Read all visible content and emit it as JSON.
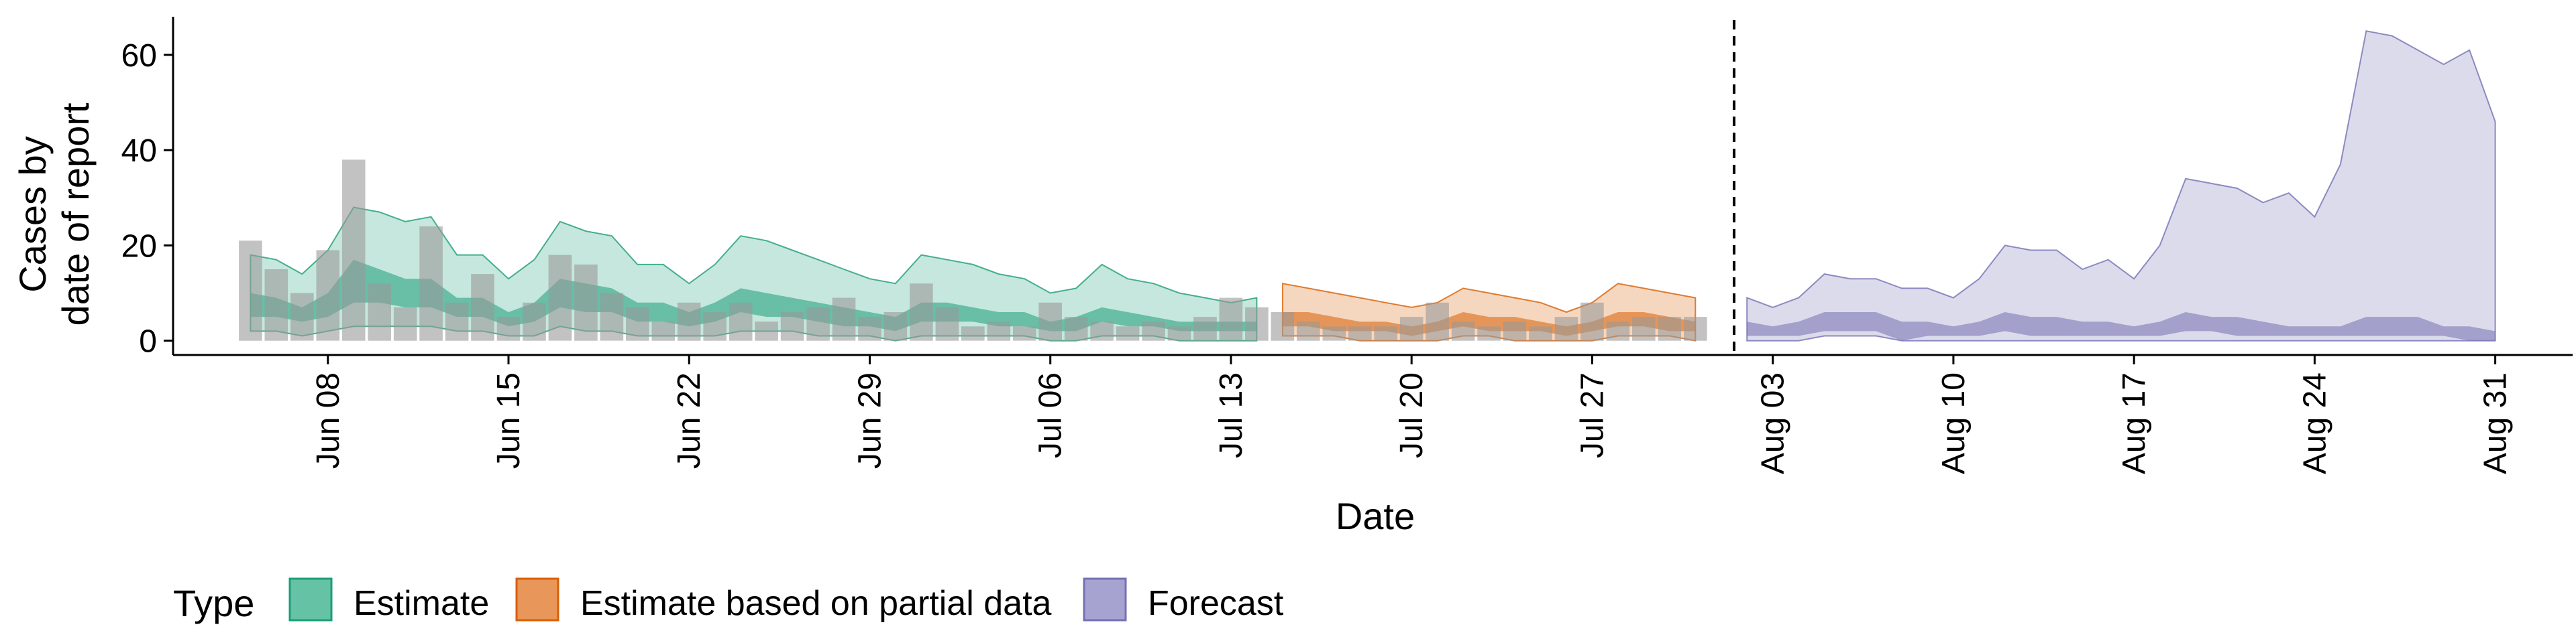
{
  "chart_data": {
    "type": "area",
    "title": "",
    "xlabel": "Date",
    "ylabel": [
      "Cases by",
      "date of report"
    ],
    "ylim": [
      -3,
      68
    ],
    "yticks": [
      0,
      20,
      40,
      60
    ],
    "xlim": [
      "2020-06-02",
      "2020-09-03"
    ],
    "xticks": [
      "2020-06-08",
      "2020-06-15",
      "2020-06-22",
      "2020-06-29",
      "2020-07-06",
      "2020-07-13",
      "2020-07-20",
      "2020-07-27",
      "2020-08-03",
      "2020-08-10",
      "2020-08-17",
      "2020-08-24",
      "2020-08-31"
    ],
    "xtick_labels": [
      "Jun 08",
      "Jun 15",
      "Jun 22",
      "Jun 29",
      "Jul 06",
      "Jul 13",
      "Jul 20",
      "Jul 27",
      "Aug 03",
      "Aug 10",
      "Aug 17",
      "Aug 24",
      "Aug 31"
    ],
    "forecast_date": "2020-08-01",
    "grid": false,
    "legend": {
      "title": "Type",
      "position": "bottom-left",
      "entries": [
        {
          "label": "Estimate",
          "fill": "#66c2a5",
          "stroke": "#1b9e77"
        },
        {
          "label": "Estimate based on partial data",
          "fill": "#e8965a",
          "stroke": "#d95f02"
        },
        {
          "label": "Forecast",
          "fill": "#a6a3d1",
          "stroke": "#7570b3"
        }
      ]
    },
    "colors": {
      "estimate_outer": "#1b9e77",
      "estimate_inner": "#1b9e77",
      "partial_outer": "#d95f02",
      "partial_inner": "#d95f02",
      "forecast_outer": "#7570b3",
      "forecast_inner": "#7570b3",
      "bars": "#999999"
    },
    "reported_cases": {
      "x": [
        "2020-06-05",
        "2020-06-06",
        "2020-06-07",
        "2020-06-08",
        "2020-06-09",
        "2020-06-10",
        "2020-06-11",
        "2020-06-12",
        "2020-06-13",
        "2020-06-14",
        "2020-06-15",
        "2020-06-16",
        "2020-06-17",
        "2020-06-18",
        "2020-06-19",
        "2020-06-20",
        "2020-06-21",
        "2020-06-22",
        "2020-06-23",
        "2020-06-24",
        "2020-06-25",
        "2020-06-26",
        "2020-06-27",
        "2020-06-28",
        "2020-06-29",
        "2020-06-30",
        "2020-07-01",
        "2020-07-02",
        "2020-07-03",
        "2020-07-04",
        "2020-07-05",
        "2020-07-06",
        "2020-07-07",
        "2020-07-08",
        "2020-07-09",
        "2020-07-10",
        "2020-07-11",
        "2020-07-12",
        "2020-07-13",
        "2020-07-14",
        "2020-07-15",
        "2020-07-16",
        "2020-07-17",
        "2020-07-18",
        "2020-07-19",
        "2020-07-20",
        "2020-07-21",
        "2020-07-22",
        "2020-07-23",
        "2020-07-24",
        "2020-07-25",
        "2020-07-26",
        "2020-07-27",
        "2020-07-28",
        "2020-07-29",
        "2020-07-30",
        "2020-07-31"
      ],
      "values": [
        21,
        15,
        10,
        19,
        38,
        12,
        7,
        24,
        8,
        14,
        5,
        8,
        18,
        16,
        10,
        7,
        4,
        8,
        6,
        8,
        4,
        6,
        7,
        9,
        5,
        6,
        12,
        7,
        3,
        4,
        3,
        8,
        5,
        4,
        3,
        4,
        3,
        5,
        9,
        7,
        6,
        4,
        3,
        3,
        3,
        5,
        8,
        4,
        3,
        4,
        3,
        5,
        8,
        4,
        5,
        5,
        5
      ]
    },
    "estimate": {
      "x": [
        "2020-06-05",
        "2020-06-06",
        "2020-06-07",
        "2020-06-08",
        "2020-06-09",
        "2020-06-10",
        "2020-06-11",
        "2020-06-12",
        "2020-06-13",
        "2020-06-14",
        "2020-06-15",
        "2020-06-16",
        "2020-06-17",
        "2020-06-18",
        "2020-06-19",
        "2020-06-20",
        "2020-06-21",
        "2020-06-22",
        "2020-06-23",
        "2020-06-24",
        "2020-06-25",
        "2020-06-26",
        "2020-06-27",
        "2020-06-28",
        "2020-06-29",
        "2020-06-30",
        "2020-07-01",
        "2020-07-02",
        "2020-07-03",
        "2020-07-04",
        "2020-07-05",
        "2020-07-06",
        "2020-07-07",
        "2020-07-08",
        "2020-07-09",
        "2020-07-10",
        "2020-07-11",
        "2020-07-12",
        "2020-07-13",
        "2020-07-14"
      ],
      "upper90": [
        18,
        17,
        14,
        19,
        28,
        27,
        25,
        26,
        18,
        18,
        13,
        17,
        25,
        23,
        22,
        16,
        16,
        12,
        16,
        22,
        21,
        19,
        17,
        15,
        13,
        12,
        18,
        17,
        16,
        14,
        13,
        10,
        11,
        16,
        13,
        12,
        10,
        9,
        8,
        9
      ],
      "upper50": [
        10,
        9,
        7,
        10,
        17,
        15,
        13,
        13,
        9,
        9,
        6,
        8,
        13,
        12,
        11,
        8,
        8,
        6,
        8,
        11,
        10,
        9,
        8,
        7,
        6,
        5,
        8,
        8,
        7,
        6,
        6,
        4,
        5,
        7,
        6,
        5,
        4,
        4,
        4,
        4
      ],
      "lower50": [
        5,
        5,
        4,
        5,
        8,
        8,
        7,
        7,
        5,
        5,
        3,
        4,
        7,
        6,
        6,
        4,
        4,
        3,
        4,
        6,
        5,
        5,
        4,
        3,
        3,
        2,
        4,
        4,
        4,
        3,
        3,
        2,
        2,
        4,
        3,
        3,
        2,
        2,
        2,
        2
      ],
      "lower90": [
        2,
        2,
        1,
        2,
        3,
        3,
        3,
        3,
        2,
        2,
        1,
        1,
        3,
        2,
        2,
        1,
        1,
        1,
        1,
        2,
        2,
        2,
        1,
        1,
        1,
        0,
        1,
        1,
        1,
        1,
        1,
        0,
        0,
        1,
        1,
        1,
        0,
        0,
        0,
        0
      ]
    },
    "partial": {
      "x": [
        "2020-07-15",
        "2020-07-16",
        "2020-07-17",
        "2020-07-18",
        "2020-07-19",
        "2020-07-20",
        "2020-07-21",
        "2020-07-22",
        "2020-07-23",
        "2020-07-24",
        "2020-07-25",
        "2020-07-26",
        "2020-07-27",
        "2020-07-28",
        "2020-07-29",
        "2020-07-30",
        "2020-07-31"
      ],
      "upper90": [
        12,
        11,
        10,
        9,
        8,
        7,
        8,
        11,
        10,
        9,
        8,
        6,
        8,
        12,
        11,
        10,
        9
      ],
      "upper50": [
        6,
        6,
        5,
        4,
        4,
        3,
        4,
        6,
        5,
        5,
        4,
        3,
        4,
        6,
        6,
        5,
        4
      ],
      "lower50": [
        3,
        3,
        2,
        2,
        2,
        1,
        2,
        3,
        2,
        2,
        2,
        1,
        2,
        3,
        3,
        2,
        2
      ],
      "lower90": [
        1,
        1,
        1,
        0,
        0,
        0,
        0,
        1,
        1,
        0,
        0,
        0,
        0,
        1,
        1,
        1,
        0
      ]
    },
    "forecast": {
      "x": [
        "2020-08-02",
        "2020-08-03",
        "2020-08-04",
        "2020-08-05",
        "2020-08-06",
        "2020-08-07",
        "2020-08-08",
        "2020-08-09",
        "2020-08-10",
        "2020-08-11",
        "2020-08-12",
        "2020-08-13",
        "2020-08-14",
        "2020-08-15",
        "2020-08-16",
        "2020-08-17",
        "2020-08-18",
        "2020-08-19",
        "2020-08-20",
        "2020-08-21",
        "2020-08-22",
        "2020-08-23",
        "2020-08-24",
        "2020-08-25",
        "2020-08-26",
        "2020-08-27",
        "2020-08-28",
        "2020-08-29",
        "2020-08-30",
        "2020-08-31"
      ],
      "upper90": [
        9,
        7,
        9,
        14,
        13,
        13,
        11,
        11,
        9,
        13,
        20,
        19,
        19,
        15,
        17,
        13,
        20,
        34,
        33,
        32,
        29,
        31,
        26,
        37,
        65,
        64,
        61,
        58,
        61,
        46
      ],
      "upper50": [
        4,
        3,
        4,
        6,
        6,
        6,
        4,
        4,
        3,
        4,
        6,
        5,
        5,
        4,
        4,
        3,
        4,
        6,
        5,
        5,
        4,
        3,
        3,
        3,
        5,
        5,
        5,
        3,
        3,
        2
      ],
      "lower50": [
        1,
        1,
        1,
        2,
        2,
        2,
        0,
        1,
        1,
        1,
        2,
        1,
        1,
        1,
        1,
        1,
        1,
        2,
        2,
        1,
        1,
        1,
        1,
        1,
        1,
        1,
        1,
        1,
        0,
        0
      ],
      "lower90": [
        0,
        0,
        0,
        1,
        1,
        1,
        0,
        0,
        0,
        0,
        0,
        0,
        0,
        0,
        0,
        0,
        0,
        0,
        0,
        0,
        0,
        0,
        0,
        0,
        0,
        0,
        0,
        0,
        0,
        0
      ]
    }
  }
}
